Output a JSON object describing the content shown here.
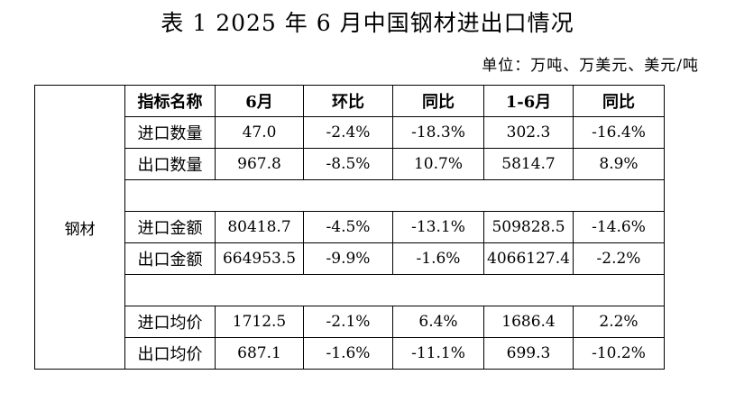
{
  "title": "表 1   2025 年 6 月中国钢材进出口情况",
  "unit": "单位：万吨、万美元、美元/吨",
  "category": "钢材",
  "headers": [
    "指标名称",
    "6月",
    "环比",
    "同比",
    "1-6月",
    "同比"
  ],
  "rows": [
    [
      "进口数量",
      "47.0",
      "-2.4%",
      "-18.3%",
      "302.3",
      "-16.4%"
    ],
    [
      "出口数量",
      "967.8",
      "-8.5%",
      "10.7%",
      "5814.7",
      "8.9%"
    ],
    [
      "进口金额",
      "80418.7",
      "-4.5%",
      "-13.1%",
      "509828.5",
      "-14.6%"
    ],
    [
      "出口金额",
      "664953.5",
      "-9.9%",
      "-1.6%",
      "4066127.4",
      "-2.2%"
    ],
    [
      "进口均价",
      "1712.5",
      "-2.1%",
      "6.4%",
      "1686.4",
      "2.2%"
    ],
    [
      "出口均价",
      "687.1",
      "-1.6%",
      "-11.1%",
      "699.3",
      "-10.2%"
    ]
  ]
}
